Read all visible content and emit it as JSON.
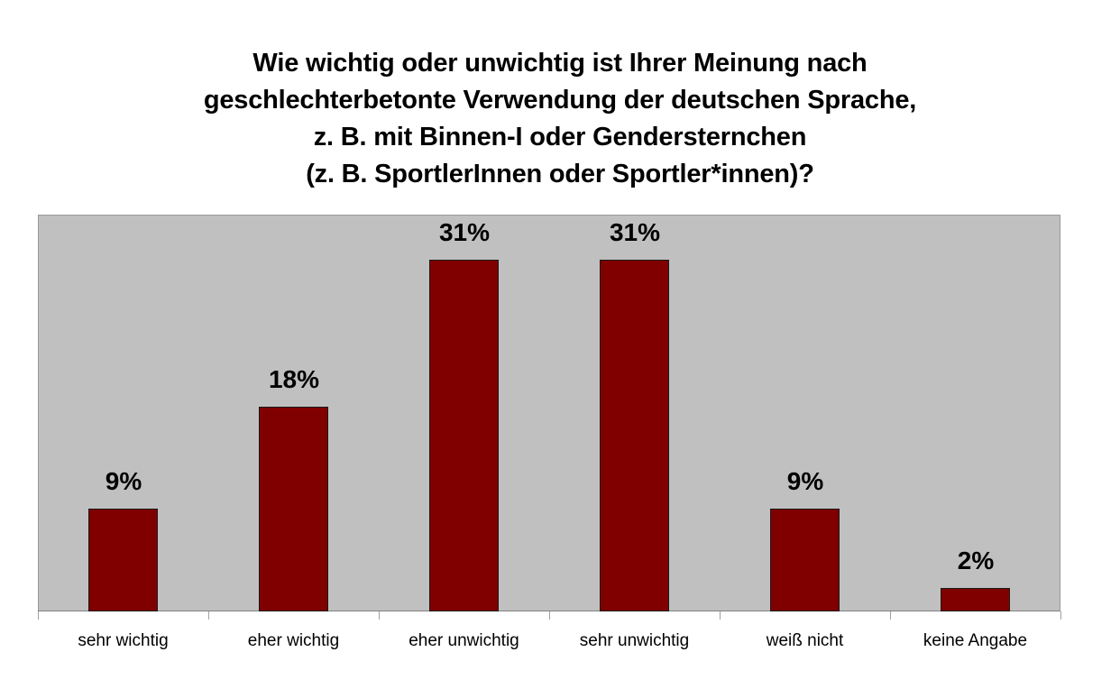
{
  "chart_data": {
    "type": "bar",
    "title": "Wie wichtig oder unwichtig ist Ihrer Meinung nach geschlechterbetonte Verwendung der deutschen Sprache, z. B. mit Binnen-I oder Gendersternchen (z. B. SportlerInnen oder Sportler*innen)?",
    "title_lines": [
      "Wie wichtig oder unwichtig ist Ihrer Meinung nach",
      "geschlechterbetonte Verwendung der deutschen Sprache,",
      "z. B. mit Binnen-I oder Gendersternchen",
      "(z. B. SportlerInnen oder Sportler*innen)?"
    ],
    "categories": [
      "sehr wichtig",
      "eher wichtig",
      "eher unwichtig",
      "sehr unwichtig",
      "weiß nicht",
      "keine Angabe"
    ],
    "values": [
      9,
      18,
      31,
      31,
      9,
      2
    ],
    "value_labels": [
      "9%",
      "18%",
      "31%",
      "31%",
      "9%",
      "2%"
    ],
    "xlabel": "",
    "ylabel": "",
    "ylim": [
      0,
      35
    ],
    "grid": false,
    "legend": null,
    "colors": {
      "bar": "#800000",
      "plot_background": "#c0c0c0",
      "page_background": "#ffffff"
    }
  }
}
